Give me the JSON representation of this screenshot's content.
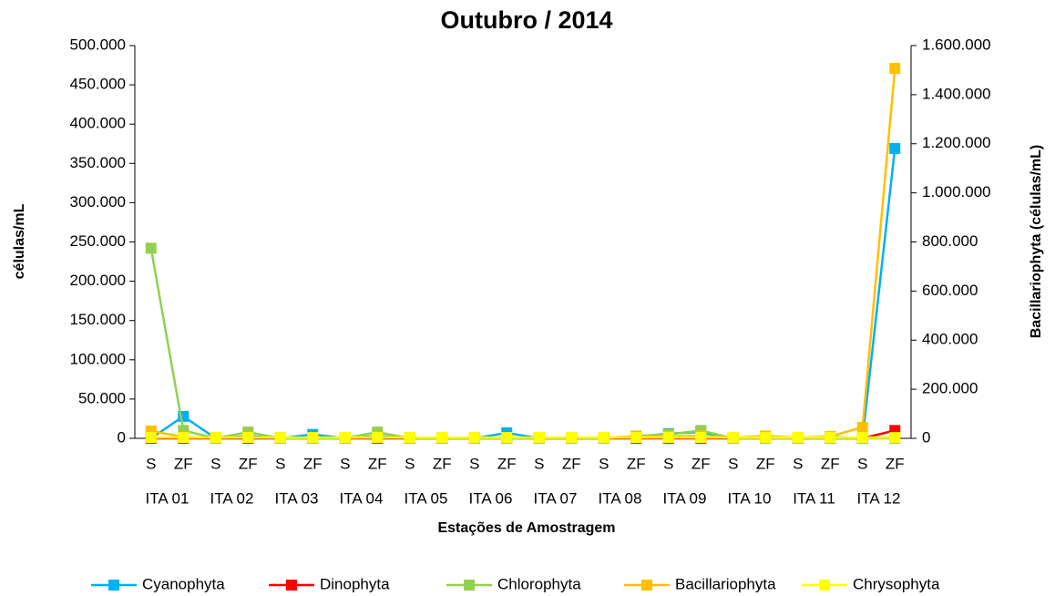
{
  "chart_data": {
    "type": "line",
    "title": "Outubro / 2014",
    "x_label": "Estações de Amostragem",
    "y_label": "células/mL",
    "y2_label": "Bacillariophyta (células/mL)",
    "categories": [
      "S",
      "ZF",
      "S",
      "ZF",
      "S",
      "ZF",
      "S",
      "ZF",
      "S",
      "ZF",
      "S",
      "ZF",
      "S",
      "ZF",
      "S",
      "ZF",
      "S",
      "ZF",
      "S",
      "ZF",
      "S",
      "ZF",
      "S",
      "ZF"
    ],
    "groups": [
      "ITA 01",
      "ITA 02",
      "ITA 03",
      "ITA 04",
      "ITA 05",
      "ITA 06",
      "ITA 07",
      "ITA 08",
      "ITA 09",
      "ITA 10",
      "ITA 11",
      "ITA 12"
    ],
    "ylim": [
      0,
      500000
    ],
    "yticks": [
      {
        "value": 0,
        "label": "0"
      },
      {
        "value": 50000,
        "label": "50.000"
      },
      {
        "value": 100000,
        "label": "100.000"
      },
      {
        "value": 150000,
        "label": "150.000"
      },
      {
        "value": 200000,
        "label": "200.000"
      },
      {
        "value": 250000,
        "label": "250.000"
      },
      {
        "value": 300000,
        "label": "300.000"
      },
      {
        "value": 350000,
        "label": "350.000"
      },
      {
        "value": 400000,
        "label": "400.000"
      },
      {
        "value": 450000,
        "label": "450.000"
      },
      {
        "value": 500000,
        "label": "500.000"
      }
    ],
    "y2lim": [
      0,
      1600000
    ],
    "y2ticks": [
      {
        "value": 0,
        "label": "0"
      },
      {
        "value": 200000,
        "label": "200.000"
      },
      {
        "value": 400000,
        "label": "400.000"
      },
      {
        "value": 600000,
        "label": "600.000"
      },
      {
        "value": 800000,
        "label": "800.000"
      },
      {
        "value": 1000000,
        "label": "1.000.000"
      },
      {
        "value": 1200000,
        "label": "1.200.000"
      },
      {
        "value": 1400000,
        "label": "1.400.000"
      },
      {
        "value": 1600000,
        "label": "1.600.000"
      }
    ],
    "grid": false,
    "series": [
      {
        "name": "Cyanophyta",
        "color": "#00b0f0",
        "values": [
          0,
          28000,
          0,
          3000,
          0,
          5000,
          0,
          3000,
          0,
          0,
          0,
          7000,
          0,
          0,
          0,
          2000,
          6000,
          8000,
          0,
          2000,
          0,
          2000,
          0,
          369000
        ]
      },
      {
        "name": "Dinophyta",
        "color": "#ff0000",
        "values": [
          0,
          0,
          0,
          0,
          0,
          0,
          0,
          0,
          0,
          0,
          0,
          0,
          0,
          0,
          0,
          0,
          0,
          0,
          0,
          0,
          0,
          0,
          0,
          10000
        ]
      },
      {
        "name": "Chlorophyta",
        "color": "#92d050",
        "values": [
          242000,
          10000,
          0,
          8000,
          0,
          0,
          0,
          8000,
          0,
          0,
          0,
          0,
          0,
          0,
          0,
          3000,
          5000,
          10000,
          0,
          0,
          0,
          0,
          0,
          0
        ]
      },
      {
        "name": "Bacillariophyta",
        "color": "#ffc000",
        "axis": "y2",
        "values": [
          30000,
          5000,
          3000,
          5000,
          3000,
          3000,
          3000,
          5000,
          3000,
          3000,
          3000,
          3000,
          3000,
          3000,
          3000,
          8000,
          8000,
          10000,
          3000,
          10000,
          3000,
          8000,
          45000,
          1507000
        ]
      },
      {
        "name": "Chrysophyta",
        "color": "#ffff00",
        "values": [
          1000,
          1000,
          1000,
          1000,
          1000,
          1000,
          1000,
          1000,
          1000,
          1000,
          1000,
          1000,
          1000,
          1000,
          1000,
          1000,
          1000,
          1000,
          1000,
          1000,
          1000,
          1000,
          1000,
          1000
        ]
      }
    ]
  }
}
